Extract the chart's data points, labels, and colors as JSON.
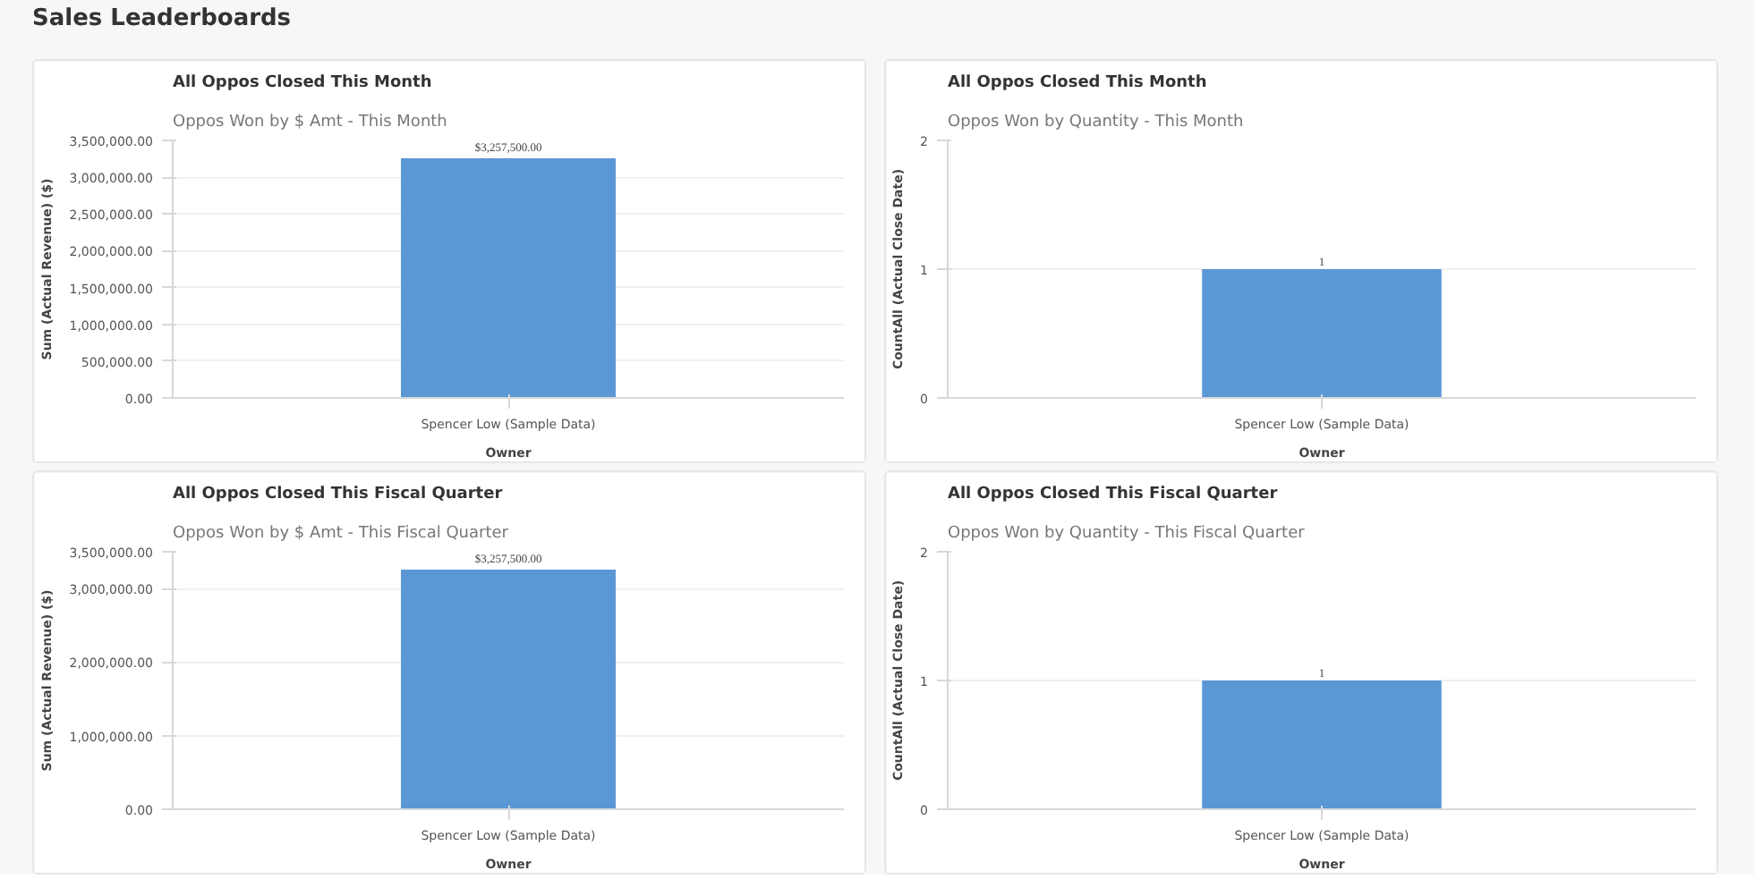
{
  "chart_data": [
    {
      "type": "bar",
      "title": "All Oppos Closed This Month",
      "subtitle": "Oppos Won by $ Amt - This Month",
      "xlabel": "Owner",
      "ylabel": "Sum (Actual Revenue) ($)",
      "annotations": [
        "Sales Leaderboards"
      ],
      "categories": [
        "Spencer Low (Sample Data)"
      ],
      "values": [
        3257500
      ],
      "value_labels": [
        "$3,257,500.00"
      ],
      "color": "#5b97d5",
      "ylim": [
        0,
        3500000
      ],
      "yticks": [
        {
          "value": 0,
          "label": "0.00"
        },
        {
          "value": 500000,
          "label": "500,000.00"
        },
        {
          "value": 1000000,
          "label": "1,000,000.00"
        },
        {
          "value": 1500000,
          "label": "1,500,000.00"
        },
        {
          "value": 2000000,
          "label": "2,000,000.00"
        },
        {
          "value": 2500000,
          "label": "2,500,000.00"
        },
        {
          "value": 3000000,
          "label": "3,000,000.00"
        },
        {
          "value": 3500000,
          "label": "3,500,000.00"
        }
      ],
      "grid": "y"
    },
    {
      "type": "bar",
      "title": "All Oppos Closed This Month",
      "subtitle": "Oppos Won by Quantity - This Month",
      "xlabel": "Owner",
      "ylabel": "CountAll (Actual Close Date)",
      "categories": [
        "Spencer Low (Sample Data)"
      ],
      "values": [
        1
      ],
      "data_labels": true,
      "color": "#5b97d5",
      "ylim": [
        0,
        2
      ],
      "yticks": [
        0,
        1,
        2
      ],
      "grid": "y"
    },
    {
      "type": "bar",
      "title": "All Oppos Closed This Fiscal Quarter",
      "subtitle": "Oppos Won by $ Amt - This Fiscal Quarter",
      "xlabel": "Owner",
      "ylabel": "Sum (Actual Revenue) ($)",
      "categories": [
        "Spencer Low (Sample Data)"
      ],
      "values": [
        3257500
      ],
      "value_labels": [
        "$3,257,500.00"
      ],
      "color": "#5b97d5",
      "ylim": [
        0,
        3500000
      ],
      "yticks": [
        {
          "value": 0,
          "label": "0.00"
        },
        {
          "value": 1000000,
          "label": "1,000,000.00"
        },
        {
          "value": 2000000,
          "label": "2,000,000.00"
        },
        {
          "value": 3000000,
          "label": "3,000,000.00"
        },
        {
          "value": 3500000,
          "label": "3,500,000.00"
        }
      ],
      "grid": "y"
    },
    {
      "type": "bar",
      "title": "All Oppos Closed This Fiscal Quarter",
      "subtitle": "Oppos Won by Quantity - This Fiscal Quarter",
      "xlabel": "Owner",
      "ylabel": "CountAll (Actual Close Date)",
      "categories": [
        "Spencer Low (Sample Data)"
      ],
      "values": [
        1
      ],
      "data_labels": true,
      "color": "#5b97d5",
      "ylim": [
        0,
        2
      ],
      "yticks": [
        0,
        1,
        2
      ],
      "grid": "y"
    }
  ]
}
